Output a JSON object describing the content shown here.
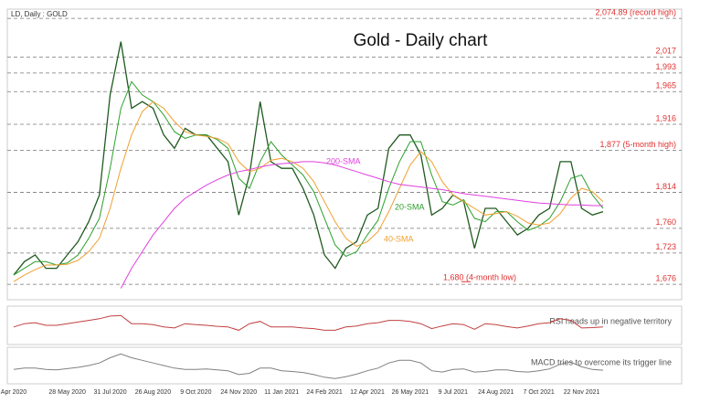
{
  "chart_data": [
    {
      "type": "line",
      "title": "Gold - Daily chart",
      "subtitle": "LD, Daily : GOLD",
      "categories": [
        "Apr 2020",
        null,
        null,
        null,
        null,
        "28 May 2020",
        null,
        null,
        null,
        "31 Jul 2020",
        null,
        null,
        null,
        "26 Aug 2020",
        null,
        null,
        null,
        "9 Oct 2020",
        null,
        null,
        null,
        "24 Nov 2020",
        null,
        null,
        null,
        "11 Jan 2021",
        null,
        null,
        null,
        "24 Feb 2021",
        null,
        null,
        null,
        "12 Apr 2021",
        null,
        null,
        null,
        "26 May 2021",
        null,
        null,
        null,
        "9 Jul 2021",
        null,
        null,
        null,
        "24 Aug 2021",
        null,
        null,
        null,
        "7 Oct 2021",
        null,
        null,
        null,
        "22 Nov 2021",
        null,
        null
      ],
      "ylim": [
        1657,
        2086
      ],
      "series": [
        {
          "color": "#1f5a1f",
          "values": [
            1690,
            1710,
            1720,
            1700,
            1700,
            1720,
            1740,
            1770,
            1810,
            1960,
            2040,
            1940,
            1950,
            1940,
            1900,
            1880,
            1910,
            1900,
            1900,
            1880,
            1860,
            1780,
            1840,
            1950,
            1860,
            1850,
            1850,
            1820,
            1780,
            1720,
            1700,
            1730,
            1740,
            1780,
            1790,
            1880,
            1900,
            1900,
            1870,
            1780,
            1790,
            1810,
            1800,
            1730,
            1790,
            1790,
            1770,
            1750,
            1760,
            1780,
            1790,
            1860,
            1860,
            1790,
            1780,
            1785
          ]
        },
        {
          "name": "20-SMA",
          "color": "#2ca02c",
          "values": [
            1690,
            1700,
            1710,
            1710,
            1705,
            1708,
            1720,
            1745,
            1775,
            1850,
            1940,
            1980,
            1960,
            1950,
            1930,
            1905,
            1895,
            1900,
            1900,
            1893,
            1880,
            1835,
            1820,
            1860,
            1890,
            1870,
            1855,
            1840,
            1815,
            1775,
            1735,
            1718,
            1725,
            1750,
            1772,
            1820,
            1860,
            1890,
            1890,
            1840,
            1800,
            1795,
            1803,
            1775,
            1770,
            1785,
            1785,
            1770,
            1757,
            1763,
            1775,
            1800,
            1835,
            1840,
            1810,
            1790
          ]
        },
        {
          "name": "40-SMA",
          "color": "#f0a030",
          "values": [
            1680,
            1690,
            1698,
            1705,
            1705,
            1706,
            1712,
            1725,
            1745,
            1790,
            1850,
            1900,
            1935,
            1950,
            1940,
            1920,
            1905,
            1900,
            1898,
            1895,
            1887,
            1860,
            1845,
            1850,
            1862,
            1865,
            1860,
            1850,
            1830,
            1800,
            1770,
            1745,
            1733,
            1740,
            1755,
            1785,
            1820,
            1855,
            1875,
            1860,
            1830,
            1810,
            1800,
            1790,
            1780,
            1782,
            1785,
            1778,
            1768,
            1765,
            1768,
            1782,
            1805,
            1820,
            1815,
            1800
          ]
        },
        {
          "name": "200-SMA",
          "color": "#e040e0",
          "values": [
            null,
            null,
            null,
            null,
            null,
            null,
            null,
            null,
            null,
            null,
            1670,
            1700,
            1725,
            1750,
            1770,
            1790,
            1805,
            1815,
            1825,
            1833,
            1840,
            1845,
            1848,
            1852,
            1855,
            1857,
            1858,
            1860,
            1860,
            1858,
            1855,
            1850,
            1845,
            1840,
            1835,
            1830,
            1826,
            1824,
            1822,
            1820,
            1818,
            1815,
            1812,
            1810,
            1808,
            1806,
            1804,
            1802,
            1800,
            1798,
            1797,
            1796,
            1795,
            1795,
            1794,
            1794
          ]
        }
      ],
      "levels": [
        {
          "value": 2074.89,
          "label": "2,074.89 (record high)"
        },
        {
          "value": 2017,
          "label": "2,017"
        },
        {
          "value": 1993,
          "label": "1,993"
        },
        {
          "value": 1965,
          "label": "1,965"
        },
        {
          "value": 1916,
          "label": "1,916"
        },
        {
          "value": 1877,
          "label": "1,877 (5-month high)"
        },
        {
          "value": 1814,
          "label": "1,814"
        },
        {
          "value": 1760,
          "label": "1,760"
        },
        {
          "value": 1723,
          "label": "1,723"
        },
        {
          "value": 1676,
          "label": "1,676"
        }
      ],
      "annotation": {
        "value": 1680,
        "label": "1,680 (4-month low)"
      }
    },
    {
      "type": "line",
      "ylim": [
        0,
        100
      ],
      "annotation": "RSI heads up in negative territory",
      "series": [
        {
          "color": "#c04040",
          "values": [
            45,
            55,
            58,
            50,
            50,
            55,
            60,
            65,
            70,
            78,
            80,
            55,
            55,
            52,
            45,
            42,
            55,
            52,
            50,
            47,
            45,
            35,
            55,
            62,
            45,
            45,
            45,
            42,
            40,
            35,
            35,
            45,
            48,
            55,
            58,
            65,
            65,
            62,
            55,
            40,
            48,
            55,
            52,
            38,
            55,
            52,
            46,
            42,
            48,
            55,
            58,
            70,
            65,
            42,
            43,
            45
          ]
        }
      ]
    },
    {
      "type": "line",
      "ylim": [
        -45,
        75
      ],
      "annotation": "MACD tries to overcome its trigger line",
      "series": [
        {
          "color": "#808080",
          "values": [
            0,
            5,
            5,
            0,
            -2,
            3,
            8,
            15,
            25,
            45,
            60,
            45,
            35,
            25,
            15,
            5,
            0,
            0,
            2,
            -2,
            -5,
            -20,
            -15,
            5,
            5,
            -5,
            -8,
            -12,
            -20,
            -30,
            -35,
            -28,
            -18,
            -5,
            5,
            25,
            35,
            35,
            25,
            -5,
            -10,
            0,
            2,
            -10,
            -8,
            -2,
            -2,
            -8,
            -10,
            -5,
            2,
            20,
            28,
            10,
            0,
            -3
          ]
        }
      ]
    }
  ]
}
